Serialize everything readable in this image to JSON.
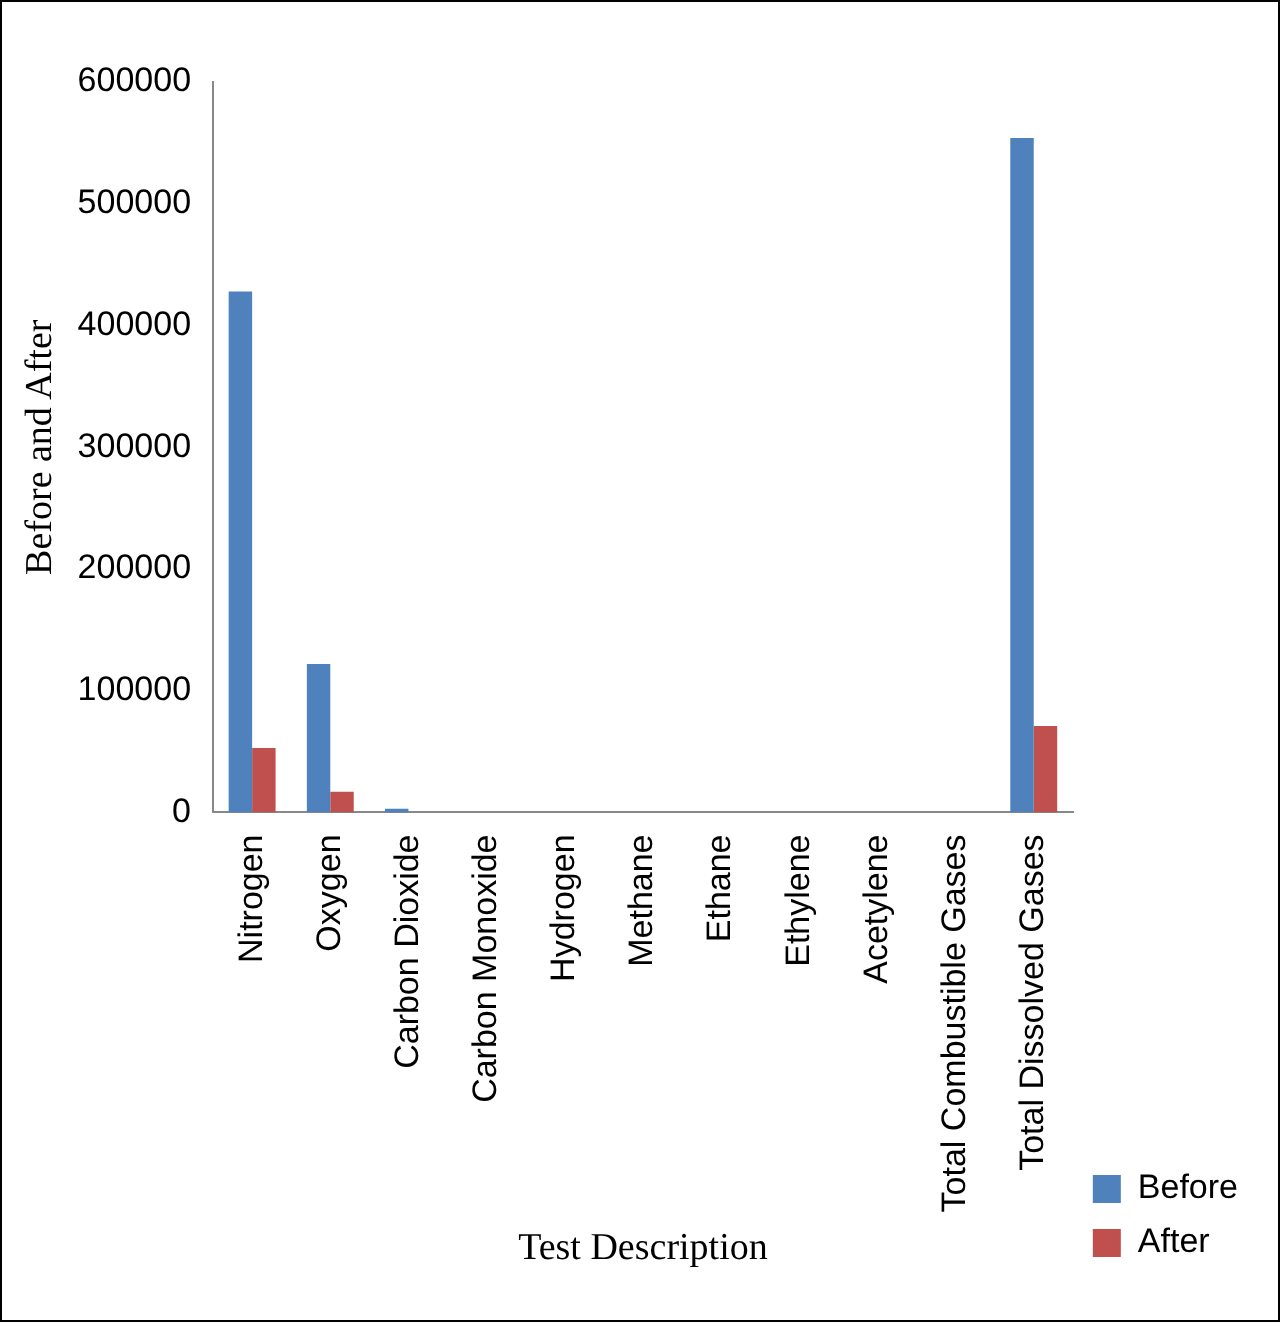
{
  "chart_data": {
    "type": "bar",
    "xlabel": "Test Description",
    "ylabel": "Before and After",
    "categories": [
      "Nitrogen",
      "Oxygen",
      "Carbon Dioxide",
      "Carbon Monoxide",
      "Hydrogen",
      "Methane",
      "Ethane",
      "Ethylene",
      "Acetylene",
      "Total Combustible Gases",
      "Total Dissolved Gases"
    ],
    "series": [
      {
        "name": "Before",
        "color": "#4f81bd",
        "values": [
          428000,
          122000,
          3000,
          0,
          0,
          0,
          0,
          0,
          0,
          0,
          554000
        ]
      },
      {
        "name": "After",
        "color": "#c0504d",
        "values": [
          53000,
          17000,
          0,
          0,
          0,
          0,
          0,
          0,
          0,
          0,
          71000
        ]
      }
    ],
    "ylim": [
      0,
      600000
    ],
    "yticks": [
      0,
      100000,
      200000,
      300000,
      400000,
      500000,
      600000
    ],
    "grid": false,
    "legend": "right"
  }
}
